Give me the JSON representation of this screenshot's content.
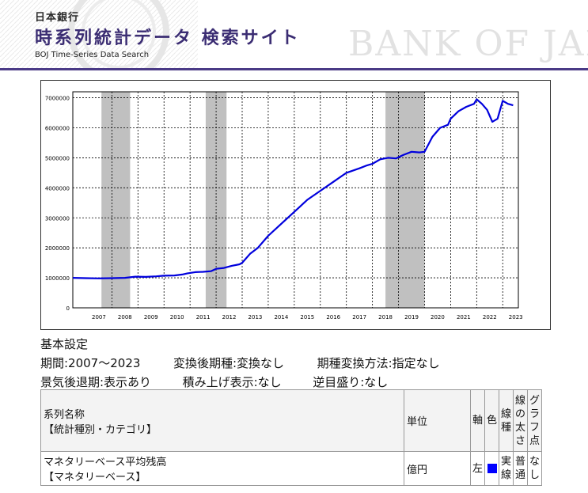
{
  "header": {
    "org_name": "日本銀行",
    "title": "時系列統計データ 検索サイト",
    "subtitle_en": "BOJ Time-Series Data Search",
    "watermark": "BANK OF JAPAN",
    "accent_color": "#4a3a86"
  },
  "chart_data": {
    "type": "line",
    "title": "",
    "xlabel": "",
    "ylabel": "",
    "xlim": [
      2006.5,
      2023.6
    ],
    "ylim": [
      0,
      7200000
    ],
    "y_ticks": [
      0,
      1000000,
      2000000,
      3000000,
      4000000,
      5000000,
      6000000,
      7000000
    ],
    "y_tick_labels": [
      "0",
      "1000000",
      "2000000",
      "3000000",
      "4000000",
      "5000000",
      "6000000",
      "7000000"
    ],
    "x_tick_labels": [
      "2007",
      "2008",
      "2009",
      "2010",
      "2011",
      "2012",
      "2013",
      "2014",
      "2015",
      "2016",
      "2017",
      "2018",
      "2019",
      "2020",
      "2021",
      "2022",
      "2023"
    ],
    "grid": true,
    "line_color": "#0000dd",
    "recession_color": "#c0c0c0",
    "recession_periods": [
      [
        2007.6,
        2008.7
      ],
      [
        2011.6,
        2012.4
      ],
      [
        2018.5,
        2020.0
      ]
    ],
    "series": [
      {
        "name": "マネタリーベース平均残高",
        "x": [
          2006.5,
          2007.0,
          2007.5,
          2008.0,
          2008.5,
          2008.9,
          2009.3,
          2009.7,
          2010.0,
          2010.4,
          2010.7,
          2010.9,
          2011.2,
          2011.5,
          2011.8,
          2012.0,
          2012.3,
          2012.6,
          2012.9,
          2013.0,
          2013.3,
          2013.6,
          2014.0,
          2014.5,
          2015.0,
          2015.5,
          2016.0,
          2016.5,
          2017.0,
          2017.5,
          2017.8,
          2018.0,
          2018.3,
          2018.6,
          2018.9,
          2019.2,
          2019.5,
          2019.8,
          2020.0,
          2020.3,
          2020.6,
          2020.9,
          2021.0,
          2021.3,
          2021.6,
          2021.9,
          2022.0,
          2022.2,
          2022.4,
          2022.6,
          2022.8,
          2023.0,
          2023.2,
          2023.4
        ],
        "y": [
          1000000,
          990000,
          980000,
          990000,
          1000000,
          1040000,
          1030000,
          1050000,
          1070000,
          1080000,
          1110000,
          1150000,
          1190000,
          1200000,
          1220000,
          1300000,
          1330000,
          1400000,
          1450000,
          1500000,
          1800000,
          2000000,
          2400000,
          2800000,
          3200000,
          3600000,
          3900000,
          4200000,
          4500000,
          4650000,
          4750000,
          4800000,
          4950000,
          5000000,
          4980000,
          5100000,
          5200000,
          5180000,
          5200000,
          5700000,
          6000000,
          6100000,
          6300000,
          6550000,
          6700000,
          6800000,
          6950000,
          6800000,
          6600000,
          6200000,
          6300000,
          6900000,
          6800000,
          6750000
        ]
      }
    ]
  },
  "settings": {
    "heading": "基本設定",
    "period": "期間:2007～2023",
    "converted_frequency": "変換後期種:変換なし",
    "conversion_method": "期種変換方法:指定なし",
    "business_cycle": "景気後退期:表示あり",
    "stacked": "積み上げ表示:なし",
    "reverse_scale": "逆目盛り:なし"
  },
  "table": {
    "headers": {
      "series_name": "系列名称",
      "category": "【統計種別・カテゴリ】",
      "unit": "単位",
      "axis": "軸",
      "color": "色",
      "line_type": "線種",
      "line_width": "線の太さ",
      "graph_points": "グラフ点"
    },
    "rows": [
      {
        "series_name": "マネタリーベース平均残高",
        "category": "【マネタリーベース】",
        "unit": "億円",
        "axis": "左",
        "color": "#0000ff",
        "line_type": "実線",
        "line_width": "普通",
        "graph_points": "なし"
      }
    ]
  }
}
